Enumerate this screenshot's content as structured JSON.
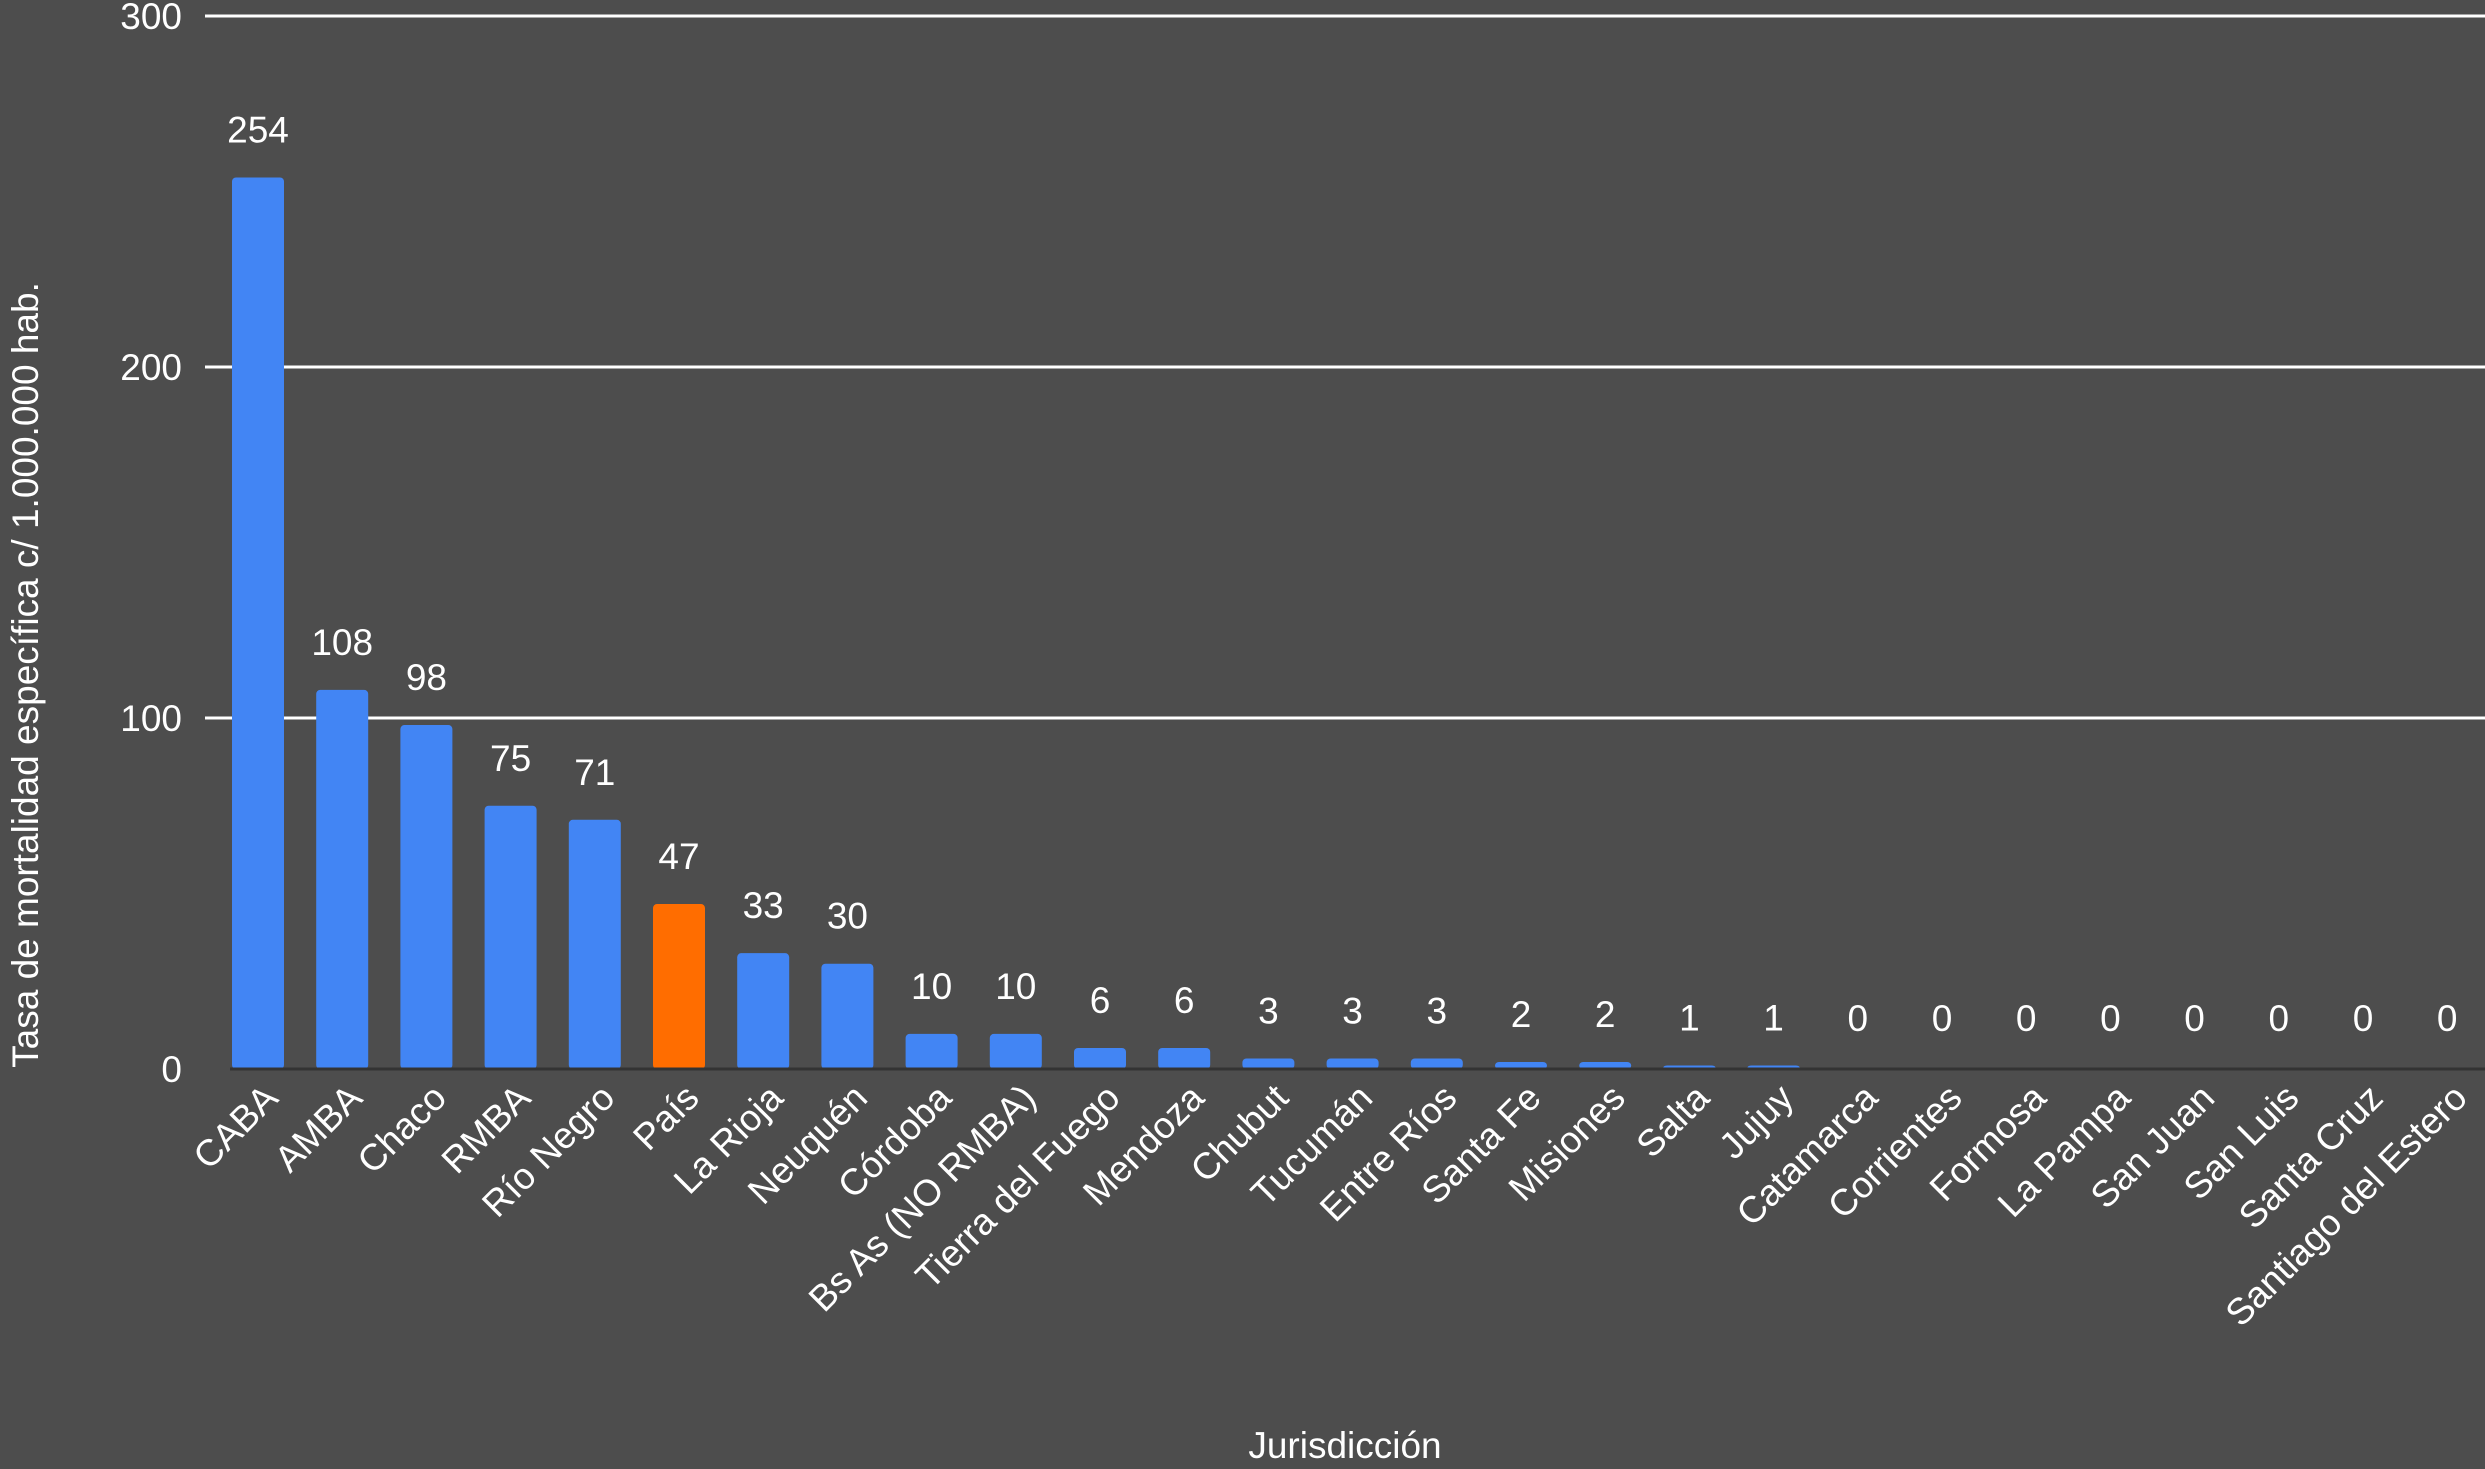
{
  "chart_data": {
    "type": "bar",
    "title": "",
    "xlabel": "Jurisdicción",
    "ylabel": "Tasa de mortalidad específica c/ 1.000.000 hab.",
    "ylim": [
      0,
      300
    ],
    "yticks": [
      0,
      100,
      200,
      300
    ],
    "grid": true,
    "legend": "none",
    "colors": {
      "default": "#4285f4",
      "highlight": "#ff6d00",
      "background": "#4d4d4d",
      "grid": "#ffffff"
    },
    "categories": [
      "CABA",
      "AMBA",
      "Chaco",
      "RMBA",
      "Río Negro",
      "País",
      "La Rioja",
      "Neuquén",
      "Córdoba",
      "Bs As (NO RMBA)",
      "Tierra del Fuego",
      "Mendoza",
      "Chubut",
      "Tucumán",
      "Entre Ríos",
      "Santa Fe",
      "Misiones",
      "Salta",
      "Jujuy",
      "Catamarca",
      "Corrientes",
      "Formosa",
      "La Pampa",
      "San Juan",
      "San Luis",
      "Santa Cruz",
      "Santiago del Estero"
    ],
    "values": [
      254,
      108,
      98,
      75,
      71,
      47,
      33,
      30,
      10,
      10,
      6,
      6,
      3,
      3,
      3,
      2,
      2,
      1,
      1,
      0,
      0,
      0,
      0,
      0,
      0,
      0,
      0
    ],
    "highlight_category": "País"
  }
}
